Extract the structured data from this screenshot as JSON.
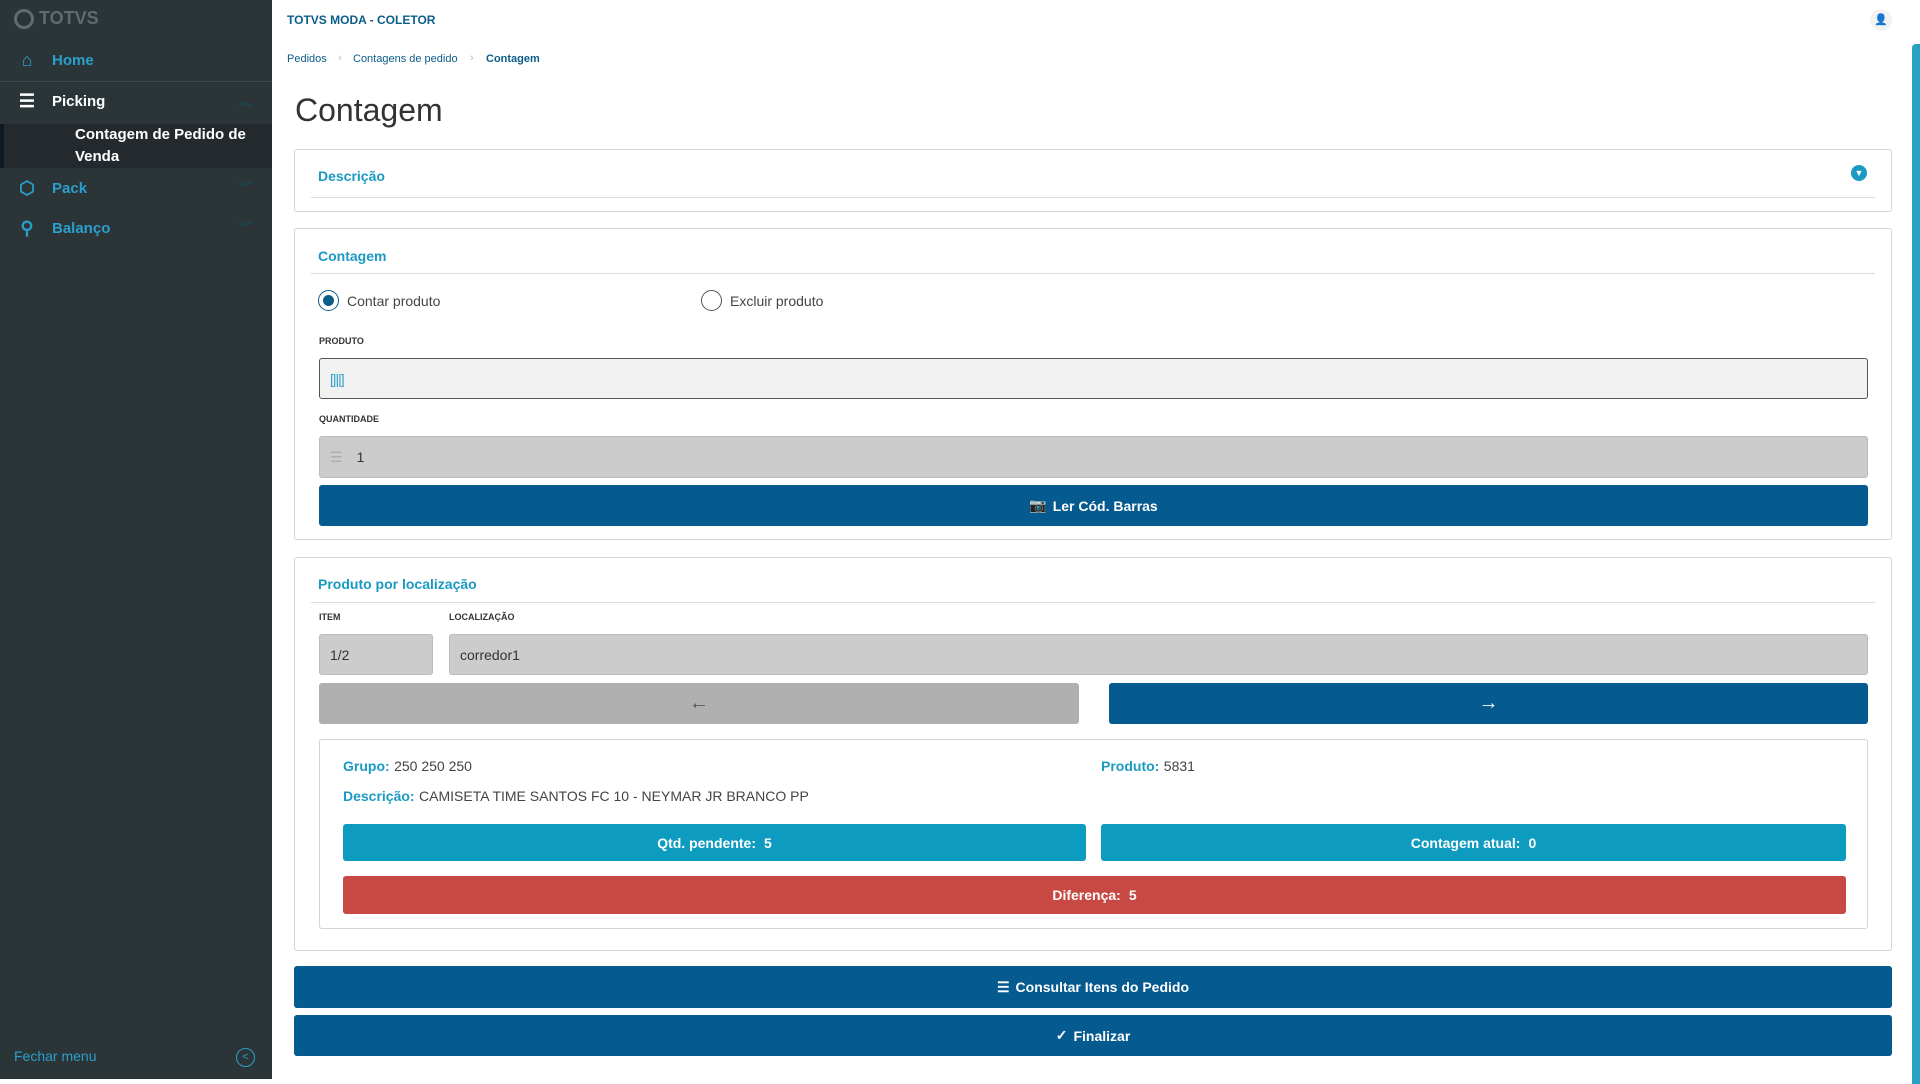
{
  "sidebar": {
    "logo": "TOTVS",
    "items": [
      {
        "label": "Home",
        "icon": "home-icon"
      },
      {
        "label": "Picking",
        "icon": "numbered-list-icon",
        "expanded": true
      },
      {
        "label": "Pack",
        "icon": "box-icon"
      },
      {
        "label": "Balanço",
        "icon": "scale-icon"
      }
    ],
    "subitem": "Contagem de Pedido de Venda",
    "close_label": "Fechar menu"
  },
  "header": {
    "title": "TOTVS MODA - COLETOR"
  },
  "breadcrumb": [
    "Pedidos",
    "Contagens de pedido",
    "Contagem"
  ],
  "page_title": "Contagem",
  "descricao_card": {
    "title": "Descrição"
  },
  "contagem_card": {
    "title": "Contagem",
    "radio_count": "Contar produto",
    "radio_exclude": "Excluir produto",
    "selected": "Contar produto",
    "produto_label": "PRODUTO",
    "produto_value": "",
    "quantidade_label": "QUANTIDADE",
    "quantidade_value": "1",
    "scan_button": "Ler Cód. Barras"
  },
  "location_card": {
    "title": "Produto por localização",
    "item_label": "ITEM",
    "item_value": "1/2",
    "loc_label": "LOCALIZAÇÃO",
    "loc_value": "corredor1",
    "grupo_label": "Grupo:",
    "grupo_value": "250 250 250",
    "produto_label": "Produto:",
    "produto_value": "5831",
    "desc_label": "Descrição:",
    "desc_value": "CAMISETA TIME SANTOS FC 10 - NEYMAR JR BRANCO PP",
    "pendente_label": "Qtd. pendente:",
    "pendente_value": "5",
    "atual_label": "Contagem atual:",
    "atual_value": "0",
    "diferenca_label": "Diferença:",
    "diferenca_value": "5"
  },
  "actions": {
    "consultar": "Consultar Itens do Pedido",
    "finalizar": "Finalizar"
  },
  "colors": {
    "primary": "#055a8f",
    "accent": "#0e9bc0",
    "danger": "#c84843",
    "sidebar": "#2b3538"
  }
}
